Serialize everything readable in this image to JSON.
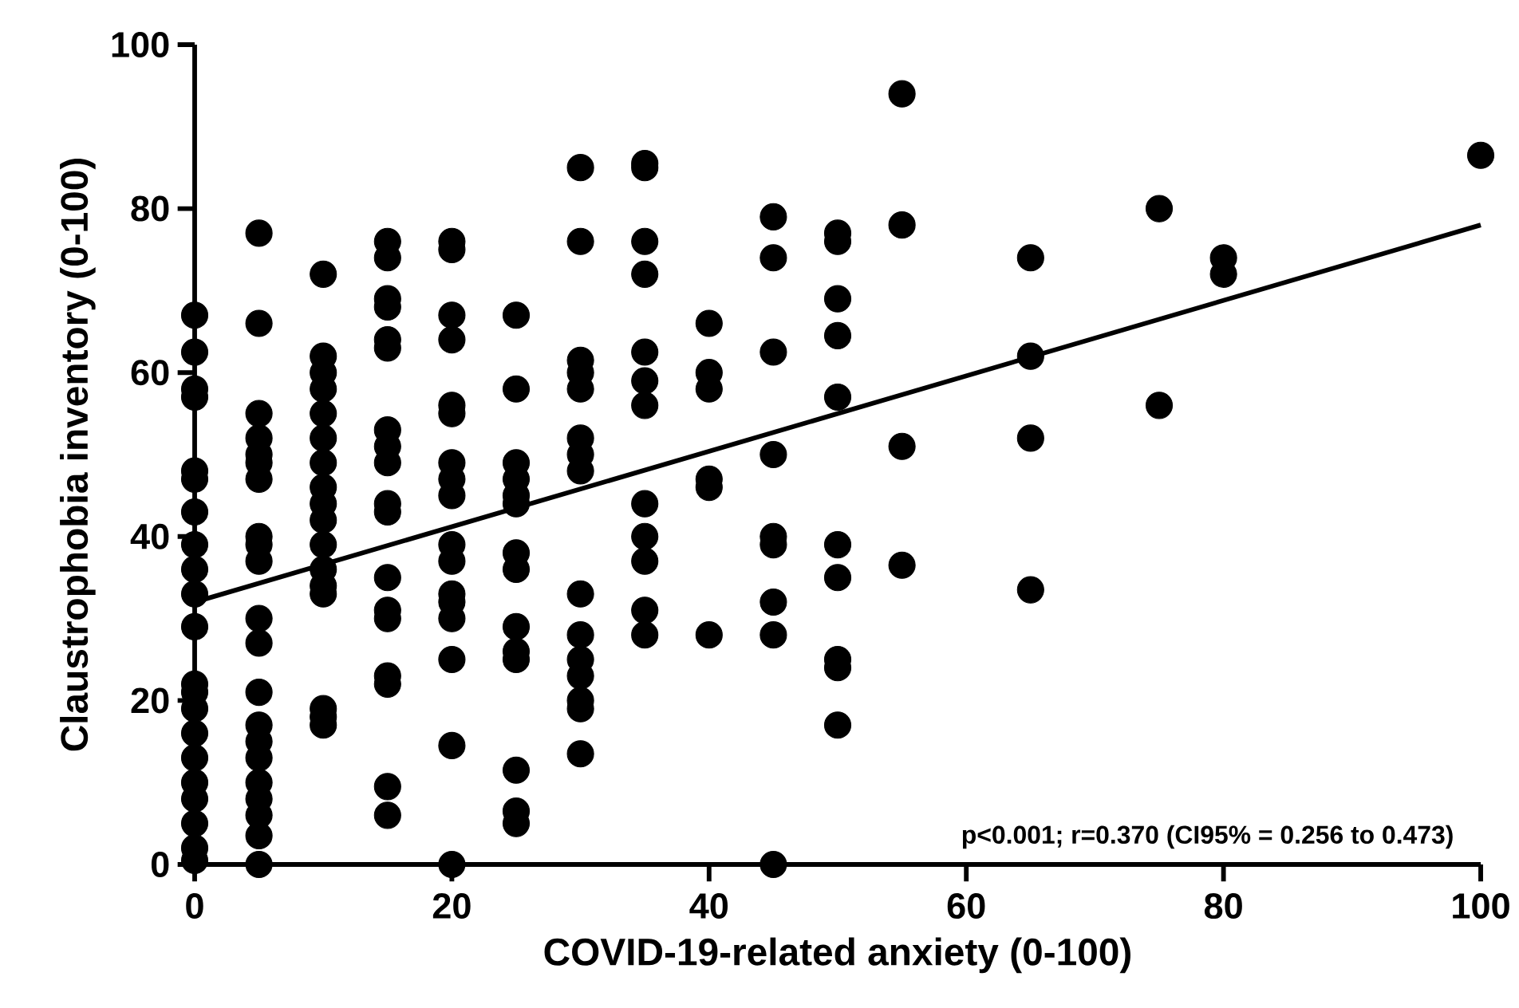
{
  "chart_data": {
    "type": "scatter",
    "xlabel": "COVID-19-related anxiety (0-100)",
    "ylabel": "Claustrophobia inventory (0-100)",
    "xlim": [
      0,
      100
    ],
    "ylim": [
      0,
      100
    ],
    "xticks": [
      0,
      20,
      40,
      60,
      80,
      100
    ],
    "yticks": [
      0,
      20,
      40,
      60,
      80,
      100
    ],
    "grid": false,
    "annotations": [
      "p<0.001; r=0.370 (CI95% = 0.256 to 0.473)"
    ],
    "series": [
      {
        "marker": "circle",
        "color": "#000000",
        "x": [
          0,
          0,
          0,
          0,
          0,
          0,
          0,
          0,
          0,
          0,
          0,
          0,
          0,
          0,
          0,
          0,
          0,
          0,
          0,
          0,
          0,
          5,
          5,
          5,
          5,
          5,
          5,
          5,
          5,
          5,
          5,
          5,
          5,
          5,
          5,
          5,
          5,
          5,
          5,
          5,
          5,
          5,
          10,
          10,
          10,
          10,
          10,
          10,
          10,
          10,
          10,
          10,
          10,
          10,
          10,
          10,
          10,
          10,
          10,
          15,
          15,
          15,
          15,
          15,
          15,
          15,
          15,
          15,
          15,
          15,
          15,
          15,
          15,
          15,
          15,
          15,
          15,
          20,
          20,
          20,
          20,
          20,
          20,
          20,
          20,
          20,
          20,
          20,
          20,
          20,
          20,
          20,
          20,
          20,
          25,
          25,
          25,
          25,
          25,
          25,
          25,
          25,
          25,
          25,
          25,
          25,
          25,
          25,
          30,
          30,
          30,
          30,
          30,
          30,
          30,
          30,
          30,
          30,
          30,
          30,
          30,
          30,
          30,
          35,
          35,
          35,
          35,
          35,
          35,
          35,
          35,
          35,
          35,
          35,
          35,
          40,
          40,
          40,
          40,
          40,
          40,
          45,
          45,
          45,
          45,
          45,
          45,
          45,
          45,
          45,
          50,
          50,
          50,
          50,
          50,
          50,
          50,
          50,
          50,
          50,
          55,
          55,
          55,
          55,
          65,
          65,
          65,
          65,
          75,
          75,
          80,
          80,
          100
        ],
        "values": [
          67,
          62.5,
          58,
          57,
          48,
          47,
          43,
          39,
          36,
          33,
          29,
          22,
          21,
          19,
          16,
          13,
          10,
          8,
          5,
          2,
          0.5,
          77,
          66,
          55,
          52,
          50,
          49,
          47,
          40,
          39,
          37,
          30,
          27,
          21,
          17,
          15,
          13,
          10,
          8,
          6,
          3.5,
          0,
          72,
          62,
          60,
          58,
          55,
          52,
          49,
          46,
          44,
          42,
          39,
          36,
          34,
          33,
          19,
          18,
          17,
          76,
          74,
          69,
          68,
          64,
          63,
          53,
          51,
          49,
          44,
          43,
          35,
          31,
          30,
          23,
          22,
          9.5,
          6,
          76,
          75,
          67,
          64,
          56,
          55,
          49,
          47,
          45,
          39,
          37,
          33,
          32,
          30,
          25,
          14.5,
          0,
          67,
          58,
          49,
          47,
          45,
          44,
          38,
          36,
          29,
          26,
          25,
          11.5,
          6.5,
          5,
          85,
          76,
          61.5,
          60,
          58,
          52,
          50,
          48,
          33,
          28,
          25,
          23,
          20,
          19,
          13.5,
          85.5,
          85,
          76,
          72,
          62.5,
          59,
          56,
          44,
          40,
          37,
          31,
          28,
          66,
          60,
          58,
          47,
          46,
          28,
          79,
          74,
          62.5,
          50,
          40,
          39,
          32,
          28,
          0,
          77,
          76,
          69,
          64.5,
          57,
          39,
          35,
          25,
          24,
          17,
          94,
          78,
          51,
          36.5,
          74,
          62,
          52,
          33.5,
          80,
          56,
          74,
          72,
          86.5
        ]
      },
      {
        "type": "line",
        "marker": "none",
        "line_style": "solid",
        "color": "#000000",
        "x": [
          0,
          100
        ],
        "values": [
          32,
          78
        ]
      }
    ]
  }
}
